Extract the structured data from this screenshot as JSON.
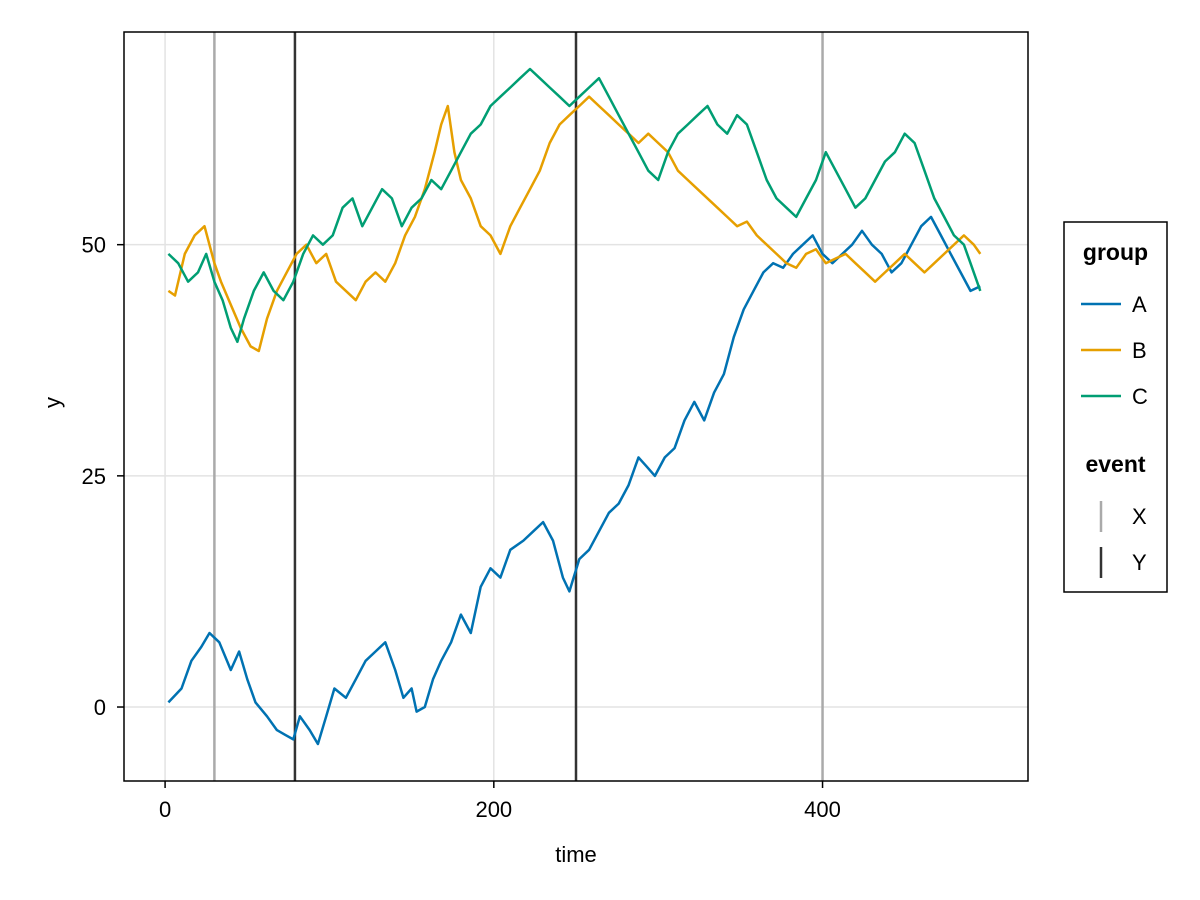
{
  "chart_data": {
    "type": "line",
    "xlabel": "time",
    "ylabel": "y",
    "xlim": [
      -25,
      525
    ],
    "ylim": [
      -8,
      73
    ],
    "x_ticks": [
      0,
      200,
      400
    ],
    "y_ticks": [
      0,
      25,
      50
    ],
    "grid": true,
    "legend_position": "right",
    "series": [
      {
        "name": "A",
        "color": "#0072B2",
        "points": [
          [
            2,
            0.5
          ],
          [
            10,
            2
          ],
          [
            16,
            5
          ],
          [
            22,
            6.5
          ],
          [
            27,
            8
          ],
          [
            33,
            7
          ],
          [
            40,
            4
          ],
          [
            45,
            6
          ],
          [
            50,
            3
          ],
          [
            55,
            0.5
          ],
          [
            62,
            -1
          ],
          [
            68,
            -2.5
          ],
          [
            73,
            -3
          ],
          [
            78,
            -3.5
          ],
          [
            82,
            -1
          ],
          [
            88,
            -2.5
          ],
          [
            93,
            -4
          ],
          [
            98,
            -1
          ],
          [
            103,
            2
          ],
          [
            110,
            1
          ],
          [
            116,
            3
          ],
          [
            122,
            5
          ],
          [
            128,
            6
          ],
          [
            134,
            7
          ],
          [
            140,
            4
          ],
          [
            145,
            1
          ],
          [
            150,
            2
          ],
          [
            153,
            -0.5
          ],
          [
            158,
            0
          ],
          [
            163,
            3
          ],
          [
            168,
            5
          ],
          [
            174,
            7
          ],
          [
            180,
            10
          ],
          [
            186,
            8
          ],
          [
            192,
            13
          ],
          [
            198,
            15
          ],
          [
            204,
            14
          ],
          [
            210,
            17
          ],
          [
            218,
            18
          ],
          [
            224,
            19
          ],
          [
            230,
            20
          ],
          [
            236,
            18
          ],
          [
            242,
            14
          ],
          [
            246,
            12.5
          ],
          [
            252,
            16
          ],
          [
            258,
            17
          ],
          [
            264,
            19
          ],
          [
            270,
            21
          ],
          [
            276,
            22
          ],
          [
            282,
            24
          ],
          [
            288,
            27
          ],
          [
            293,
            26
          ],
          [
            298,
            25
          ],
          [
            304,
            27
          ],
          [
            310,
            28
          ],
          [
            316,
            31
          ],
          [
            322,
            33
          ],
          [
            328,
            31
          ],
          [
            334,
            34
          ],
          [
            340,
            36
          ],
          [
            346,
            40
          ],
          [
            352,
            43
          ],
          [
            358,
            45
          ],
          [
            364,
            47
          ],
          [
            370,
            48
          ],
          [
            376,
            47.5
          ],
          [
            382,
            49
          ],
          [
            388,
            50
          ],
          [
            394,
            51
          ],
          [
            400,
            49
          ],
          [
            406,
            48
          ],
          [
            412,
            49
          ],
          [
            418,
            50
          ],
          [
            424,
            51.5
          ],
          [
            430,
            50
          ],
          [
            436,
            49
          ],
          [
            442,
            47
          ],
          [
            448,
            48
          ],
          [
            454,
            50
          ],
          [
            460,
            52
          ],
          [
            466,
            53
          ],
          [
            472,
            51
          ],
          [
            478,
            49
          ],
          [
            484,
            47
          ],
          [
            490,
            45
          ],
          [
            496,
            45.5
          ]
        ]
      },
      {
        "name": "B",
        "color": "#E69F00",
        "points": [
          [
            2,
            45
          ],
          [
            6,
            44.5
          ],
          [
            12,
            49
          ],
          [
            18,
            51
          ],
          [
            24,
            52
          ],
          [
            30,
            48
          ],
          [
            34,
            46
          ],
          [
            40,
            43.5
          ],
          [
            46,
            41
          ],
          [
            52,
            39
          ],
          [
            57,
            38.5
          ],
          [
            62,
            42
          ],
          [
            68,
            45
          ],
          [
            74,
            47
          ],
          [
            80,
            49
          ],
          [
            86,
            50
          ],
          [
            92,
            48
          ],
          [
            98,
            49
          ],
          [
            104,
            46
          ],
          [
            110,
            45
          ],
          [
            116,
            44
          ],
          [
            122,
            46
          ],
          [
            128,
            47
          ],
          [
            134,
            46
          ],
          [
            140,
            48
          ],
          [
            146,
            51
          ],
          [
            152,
            53
          ],
          [
            158,
            56
          ],
          [
            164,
            60
          ],
          [
            168,
            63
          ],
          [
            172,
            65
          ],
          [
            176,
            60
          ],
          [
            180,
            57
          ],
          [
            186,
            55
          ],
          [
            192,
            52
          ],
          [
            198,
            51
          ],
          [
            204,
            49
          ],
          [
            210,
            52
          ],
          [
            216,
            54
          ],
          [
            222,
            56
          ],
          [
            228,
            58
          ],
          [
            234,
            61
          ],
          [
            240,
            63
          ],
          [
            246,
            64
          ],
          [
            252,
            65
          ],
          [
            258,
            66
          ],
          [
            264,
            65
          ],
          [
            270,
            64
          ],
          [
            276,
            63
          ],
          [
            282,
            62
          ],
          [
            288,
            61
          ],
          [
            294,
            62
          ],
          [
            300,
            61
          ],
          [
            306,
            60
          ],
          [
            312,
            58
          ],
          [
            318,
            57
          ],
          [
            324,
            56
          ],
          [
            330,
            55
          ],
          [
            336,
            54
          ],
          [
            342,
            53
          ],
          [
            348,
            52
          ],
          [
            354,
            52.5
          ],
          [
            360,
            51
          ],
          [
            366,
            50
          ],
          [
            372,
            49
          ],
          [
            378,
            48
          ],
          [
            384,
            47.5
          ],
          [
            390,
            49
          ],
          [
            396,
            49.5
          ],
          [
            402,
            48
          ],
          [
            408,
            48.5
          ],
          [
            414,
            49
          ],
          [
            420,
            48
          ],
          [
            426,
            47
          ],
          [
            432,
            46
          ],
          [
            438,
            47
          ],
          [
            444,
            48
          ],
          [
            450,
            49
          ],
          [
            456,
            48
          ],
          [
            462,
            47
          ],
          [
            468,
            48
          ],
          [
            474,
            49
          ],
          [
            480,
            50
          ],
          [
            486,
            51
          ],
          [
            492,
            50
          ],
          [
            496,
            49
          ]
        ]
      },
      {
        "name": "C",
        "color": "#009E73",
        "points": [
          [
            2,
            49
          ],
          [
            8,
            48
          ],
          [
            14,
            46
          ],
          [
            20,
            47
          ],
          [
            25,
            49
          ],
          [
            30,
            46
          ],
          [
            35,
            44
          ],
          [
            40,
            41
          ],
          [
            44,
            39.5
          ],
          [
            48,
            42
          ],
          [
            54,
            45
          ],
          [
            60,
            47
          ],
          [
            66,
            45
          ],
          [
            72,
            44
          ],
          [
            78,
            46
          ],
          [
            84,
            49
          ],
          [
            90,
            51
          ],
          [
            96,
            50
          ],
          [
            102,
            51
          ],
          [
            108,
            54
          ],
          [
            114,
            55
          ],
          [
            120,
            52
          ],
          [
            126,
            54
          ],
          [
            132,
            56
          ],
          [
            138,
            55
          ],
          [
            144,
            52
          ],
          [
            150,
            54
          ],
          [
            156,
            55
          ],
          [
            162,
            57
          ],
          [
            168,
            56
          ],
          [
            174,
            58
          ],
          [
            180,
            60
          ],
          [
            186,
            62
          ],
          [
            192,
            63
          ],
          [
            198,
            65
          ],
          [
            204,
            66
          ],
          [
            210,
            67
          ],
          [
            216,
            68
          ],
          [
            222,
            69
          ],
          [
            228,
            68
          ],
          [
            234,
            67
          ],
          [
            240,
            66
          ],
          [
            246,
            65
          ],
          [
            252,
            66
          ],
          [
            258,
            67
          ],
          [
            264,
            68
          ],
          [
            270,
            66
          ],
          [
            276,
            64
          ],
          [
            282,
            62
          ],
          [
            288,
            60
          ],
          [
            294,
            58
          ],
          [
            300,
            57
          ],
          [
            306,
            60
          ],
          [
            312,
            62
          ],
          [
            318,
            63
          ],
          [
            324,
            64
          ],
          [
            330,
            65
          ],
          [
            336,
            63
          ],
          [
            342,
            62
          ],
          [
            348,
            64
          ],
          [
            354,
            63
          ],
          [
            360,
            60
          ],
          [
            366,
            57
          ],
          [
            372,
            55
          ],
          [
            378,
            54
          ],
          [
            384,
            53
          ],
          [
            390,
            55
          ],
          [
            396,
            57
          ],
          [
            402,
            60
          ],
          [
            408,
            58
          ],
          [
            414,
            56
          ],
          [
            420,
            54
          ],
          [
            426,
            55
          ],
          [
            432,
            57
          ],
          [
            438,
            59
          ],
          [
            444,
            60
          ],
          [
            450,
            62
          ],
          [
            456,
            61
          ],
          [
            462,
            58
          ],
          [
            468,
            55
          ],
          [
            474,
            53
          ],
          [
            480,
            51
          ],
          [
            486,
            50
          ],
          [
            490,
            48
          ],
          [
            496,
            45
          ]
        ]
      }
    ],
    "event_lines": [
      {
        "name": "X",
        "x": 30,
        "color": "#aaaaaa"
      },
      {
        "name": "Y",
        "x": 79,
        "color": "#333333"
      },
      {
        "name": "Y",
        "x": 250,
        "color": "#333333"
      },
      {
        "name": "X",
        "x": 400,
        "color": "#aaaaaa"
      }
    ],
    "legend": [
      {
        "title": "group",
        "entries": [
          {
            "label": "A",
            "color": "#0072B2",
            "marker": "line"
          },
          {
            "label": "B",
            "color": "#E69F00",
            "marker": "line"
          },
          {
            "label": "C",
            "color": "#009E73",
            "marker": "line"
          }
        ]
      },
      {
        "title": "event",
        "entries": [
          {
            "label": "X",
            "color": "#aaaaaa",
            "marker": "vline"
          },
          {
            "label": "Y",
            "color": "#333333",
            "marker": "vline"
          }
        ]
      }
    ]
  }
}
